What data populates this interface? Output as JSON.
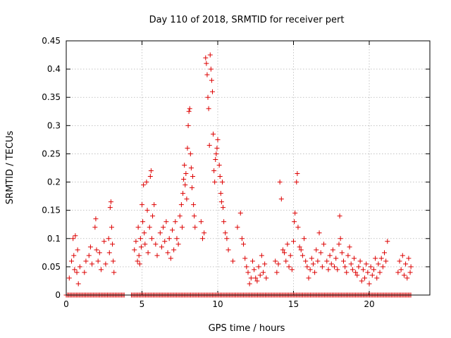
{
  "chart_data": {
    "type": "scatter",
    "title": "Day 110 of 2018, SRMTID for receiver pert",
    "xlabel": "GPS time / hours",
    "ylabel": "SRMTID / TECUs",
    "xlim": [
      0,
      24
    ],
    "ylim": [
      0,
      0.45
    ],
    "grid": true,
    "marker": "+",
    "marker_color": "#dd0000",
    "x_ticks": [
      0,
      5,
      10,
      15,
      20
    ],
    "x_tick_labels": [
      "0",
      "5",
      "10",
      "15",
      "20"
    ],
    "y_ticks": [
      0,
      0.05,
      0.1,
      0.15,
      0.2,
      0.25,
      0.3,
      0.35,
      0.4,
      0.45
    ],
    "y_tick_labels": [
      "0",
      "0.05",
      "0.1",
      "0.15",
      "0.2",
      "0.25",
      "0.3",
      "0.35",
      "0.4",
      "0.45"
    ],
    "series": [
      {
        "name": "SRMTID",
        "points": [
          [
            0.2,
            0.03
          ],
          [
            0.35,
            0.06
          ],
          [
            0.45,
            0.1
          ],
          [
            0.5,
            0.07
          ],
          [
            0.55,
            0.045
          ],
          [
            0.6,
            0.105
          ],
          [
            0.7,
            0.04
          ],
          [
            0.75,
            0.08
          ],
          [
            0.8,
            0.02
          ],
          [
            0.9,
            0.05
          ],
          [
            1.2,
            0.04
          ],
          [
            1.3,
            0.06
          ],
          [
            1.5,
            0.07
          ],
          [
            1.6,
            0.085
          ],
          [
            1.7,
            0.055
          ],
          [
            1.9,
            0.12
          ],
          [
            1.95,
            0.135
          ],
          [
            2.0,
            0.08
          ],
          [
            2.1,
            0.06
          ],
          [
            2.2,
            0.075
          ],
          [
            2.3,
            0.045
          ],
          [
            2.5,
            0.095
          ],
          [
            2.6,
            0.055
          ],
          [
            2.8,
            0.1
          ],
          [
            2.85,
            0.075
          ],
          [
            2.9,
            0.155
          ],
          [
            2.95,
            0.165
          ],
          [
            3.0,
            0.12
          ],
          [
            3.05,
            0.09
          ],
          [
            3.1,
            0.06
          ],
          [
            3.15,
            0.04
          ],
          [
            4.5,
            0.08
          ],
          [
            4.6,
            0.095
          ],
          [
            4.7,
            0.06
          ],
          [
            4.75,
            0.12
          ],
          [
            4.8,
            0.07
          ],
          [
            4.85,
            0.055
          ],
          [
            4.9,
            0.1
          ],
          [
            4.95,
            0.085
          ],
          [
            5.0,
            0.16
          ],
          [
            5.05,
            0.13
          ],
          [
            5.1,
            0.195
          ],
          [
            5.15,
            0.11
          ],
          [
            5.2,
            0.09
          ],
          [
            5.3,
            0.2
          ],
          [
            5.35,
            0.15
          ],
          [
            5.4,
            0.075
          ],
          [
            5.5,
            0.12
          ],
          [
            5.55,
            0.21
          ],
          [
            5.6,
            0.22
          ],
          [
            5.65,
            0.1
          ],
          [
            5.7,
            0.14
          ],
          [
            5.8,
            0.16
          ],
          [
            5.9,
            0.09
          ],
          [
            6.0,
            0.07
          ],
          [
            6.2,
            0.11
          ],
          [
            6.3,
            0.085
          ],
          [
            6.4,
            0.12
          ],
          [
            6.5,
            0.095
          ],
          [
            6.6,
            0.13
          ],
          [
            6.7,
            0.075
          ],
          [
            6.8,
            0.1
          ],
          [
            6.9,
            0.065
          ],
          [
            7.0,
            0.115
          ],
          [
            7.1,
            0.08
          ],
          [
            7.2,
            0.13
          ],
          [
            7.3,
            0.1
          ],
          [
            7.4,
            0.09
          ],
          [
            7.5,
            0.14
          ],
          [
            7.6,
            0.16
          ],
          [
            7.65,
            0.12
          ],
          [
            7.7,
            0.18
          ],
          [
            7.75,
            0.205
          ],
          [
            7.8,
            0.23
          ],
          [
            7.85,
            0.195
          ],
          [
            7.9,
            0.215
          ],
          [
            7.95,
            0.17
          ],
          [
            8.0,
            0.26
          ],
          [
            8.05,
            0.3
          ],
          [
            8.1,
            0.325
          ],
          [
            8.15,
            0.33
          ],
          [
            8.2,
            0.25
          ],
          [
            8.25,
            0.225
          ],
          [
            8.3,
            0.19
          ],
          [
            8.35,
            0.21
          ],
          [
            8.4,
            0.16
          ],
          [
            8.45,
            0.14
          ],
          [
            8.5,
            0.12
          ],
          [
            8.9,
            0.13
          ],
          [
            9.0,
            0.1
          ],
          [
            9.1,
            0.11
          ],
          [
            9.2,
            0.42
          ],
          [
            9.25,
            0.41
          ],
          [
            9.3,
            0.39
          ],
          [
            9.35,
            0.35
          ],
          [
            9.4,
            0.33
          ],
          [
            9.45,
            0.265
          ],
          [
            9.5,
            0.425
          ],
          [
            9.55,
            0.4
          ],
          [
            9.6,
            0.38
          ],
          [
            9.65,
            0.36
          ],
          [
            9.7,
            0.285
          ],
          [
            9.75,
            0.22
          ],
          [
            9.8,
            0.2
          ],
          [
            9.85,
            0.24
          ],
          [
            9.9,
            0.25
          ],
          [
            9.95,
            0.26
          ],
          [
            10.0,
            0.275
          ],
          [
            10.1,
            0.23
          ],
          [
            10.15,
            0.21
          ],
          [
            10.2,
            0.18
          ],
          [
            10.25,
            0.165
          ],
          [
            10.3,
            0.2
          ],
          [
            10.35,
            0.155
          ],
          [
            10.4,
            0.13
          ],
          [
            10.5,
            0.11
          ],
          [
            10.6,
            0.1
          ],
          [
            10.7,
            0.08
          ],
          [
            11.0,
            0.06
          ],
          [
            11.3,
            0.12
          ],
          [
            11.5,
            0.145
          ],
          [
            11.6,
            0.1
          ],
          [
            11.7,
            0.09
          ],
          [
            11.8,
            0.065
          ],
          [
            11.9,
            0.05
          ],
          [
            12.0,
            0.04
          ],
          [
            12.1,
            0.02
          ],
          [
            12.2,
            0.03
          ],
          [
            12.3,
            0.06
          ],
          [
            12.4,
            0.045
          ],
          [
            12.5,
            0.03
          ],
          [
            12.6,
            0.025
          ],
          [
            12.7,
            0.05
          ],
          [
            12.8,
            0.035
          ],
          [
            12.9,
            0.07
          ],
          [
            13.0,
            0.04
          ],
          [
            13.1,
            0.055
          ],
          [
            13.2,
            0.03
          ],
          [
            13.8,
            0.06
          ],
          [
            13.9,
            0.04
          ],
          [
            14.0,
            0.055
          ],
          [
            14.1,
            0.2
          ],
          [
            14.2,
            0.17
          ],
          [
            14.3,
            0.08
          ],
          [
            14.4,
            0.075
          ],
          [
            14.5,
            0.06
          ],
          [
            14.6,
            0.09
          ],
          [
            14.7,
            0.05
          ],
          [
            14.8,
            0.07
          ],
          [
            14.9,
            0.045
          ],
          [
            15.0,
            0.095
          ],
          [
            15.05,
            0.13
          ],
          [
            15.1,
            0.145
          ],
          [
            15.2,
            0.2
          ],
          [
            15.25,
            0.215
          ],
          [
            15.3,
            0.12
          ],
          [
            15.4,
            0.085
          ],
          [
            15.5,
            0.08
          ],
          [
            15.6,
            0.07
          ],
          [
            15.7,
            0.1
          ],
          [
            15.8,
            0.06
          ],
          [
            15.9,
            0.05
          ],
          [
            16.0,
            0.03
          ],
          [
            16.1,
            0.045
          ],
          [
            16.2,
            0.065
          ],
          [
            16.3,
            0.055
          ],
          [
            16.4,
            0.04
          ],
          [
            16.5,
            0.08
          ],
          [
            16.6,
            0.06
          ],
          [
            16.7,
            0.11
          ],
          [
            16.8,
            0.075
          ],
          [
            16.9,
            0.05
          ],
          [
            17.0,
            0.09
          ],
          [
            17.2,
            0.06
          ],
          [
            17.3,
            0.045
          ],
          [
            17.4,
            0.07
          ],
          [
            17.5,
            0.055
          ],
          [
            17.6,
            0.08
          ],
          [
            17.7,
            0.05
          ],
          [
            17.8,
            0.065
          ],
          [
            17.9,
            0.045
          ],
          [
            18.0,
            0.09
          ],
          [
            18.05,
            0.14
          ],
          [
            18.1,
            0.1
          ],
          [
            18.2,
            0.075
          ],
          [
            18.3,
            0.06
          ],
          [
            18.4,
            0.05
          ],
          [
            18.5,
            0.04
          ],
          [
            18.6,
            0.07
          ],
          [
            18.7,
            0.085
          ],
          [
            18.8,
            0.055
          ],
          [
            18.9,
            0.045
          ],
          [
            19.0,
            0.065
          ],
          [
            19.1,
            0.04
          ],
          [
            19.2,
            0.035
          ],
          [
            19.3,
            0.05
          ],
          [
            19.4,
            0.06
          ],
          [
            19.5,
            0.025
          ],
          [
            19.6,
            0.045
          ],
          [
            19.7,
            0.03
          ],
          [
            19.8,
            0.055
          ],
          [
            19.9,
            0.04
          ],
          [
            20.0,
            0.02
          ],
          [
            20.1,
            0.05
          ],
          [
            20.2,
            0.035
          ],
          [
            20.3,
            0.045
          ],
          [
            20.4,
            0.065
          ],
          [
            20.5,
            0.03
          ],
          [
            20.6,
            0.055
          ],
          [
            20.7,
            0.04
          ],
          [
            20.8,
            0.065
          ],
          [
            20.9,
            0.05
          ],
          [
            21.0,
            0.075
          ],
          [
            21.1,
            0.06
          ],
          [
            21.2,
            0.095
          ],
          [
            21.9,
            0.04
          ],
          [
            22.0,
            0.06
          ],
          [
            22.1,
            0.045
          ],
          [
            22.2,
            0.07
          ],
          [
            22.3,
            0.035
          ],
          [
            22.4,
            0.055
          ],
          [
            22.5,
            0.03
          ],
          [
            22.6,
            0.065
          ],
          [
            22.7,
            0.04
          ],
          [
            22.75,
            0.05
          ]
        ],
        "zero_runs": [
          [
            0.0,
            3.9
          ],
          [
            4.3,
            22.8
          ]
        ],
        "zero_step": 0.085
      }
    ]
  }
}
